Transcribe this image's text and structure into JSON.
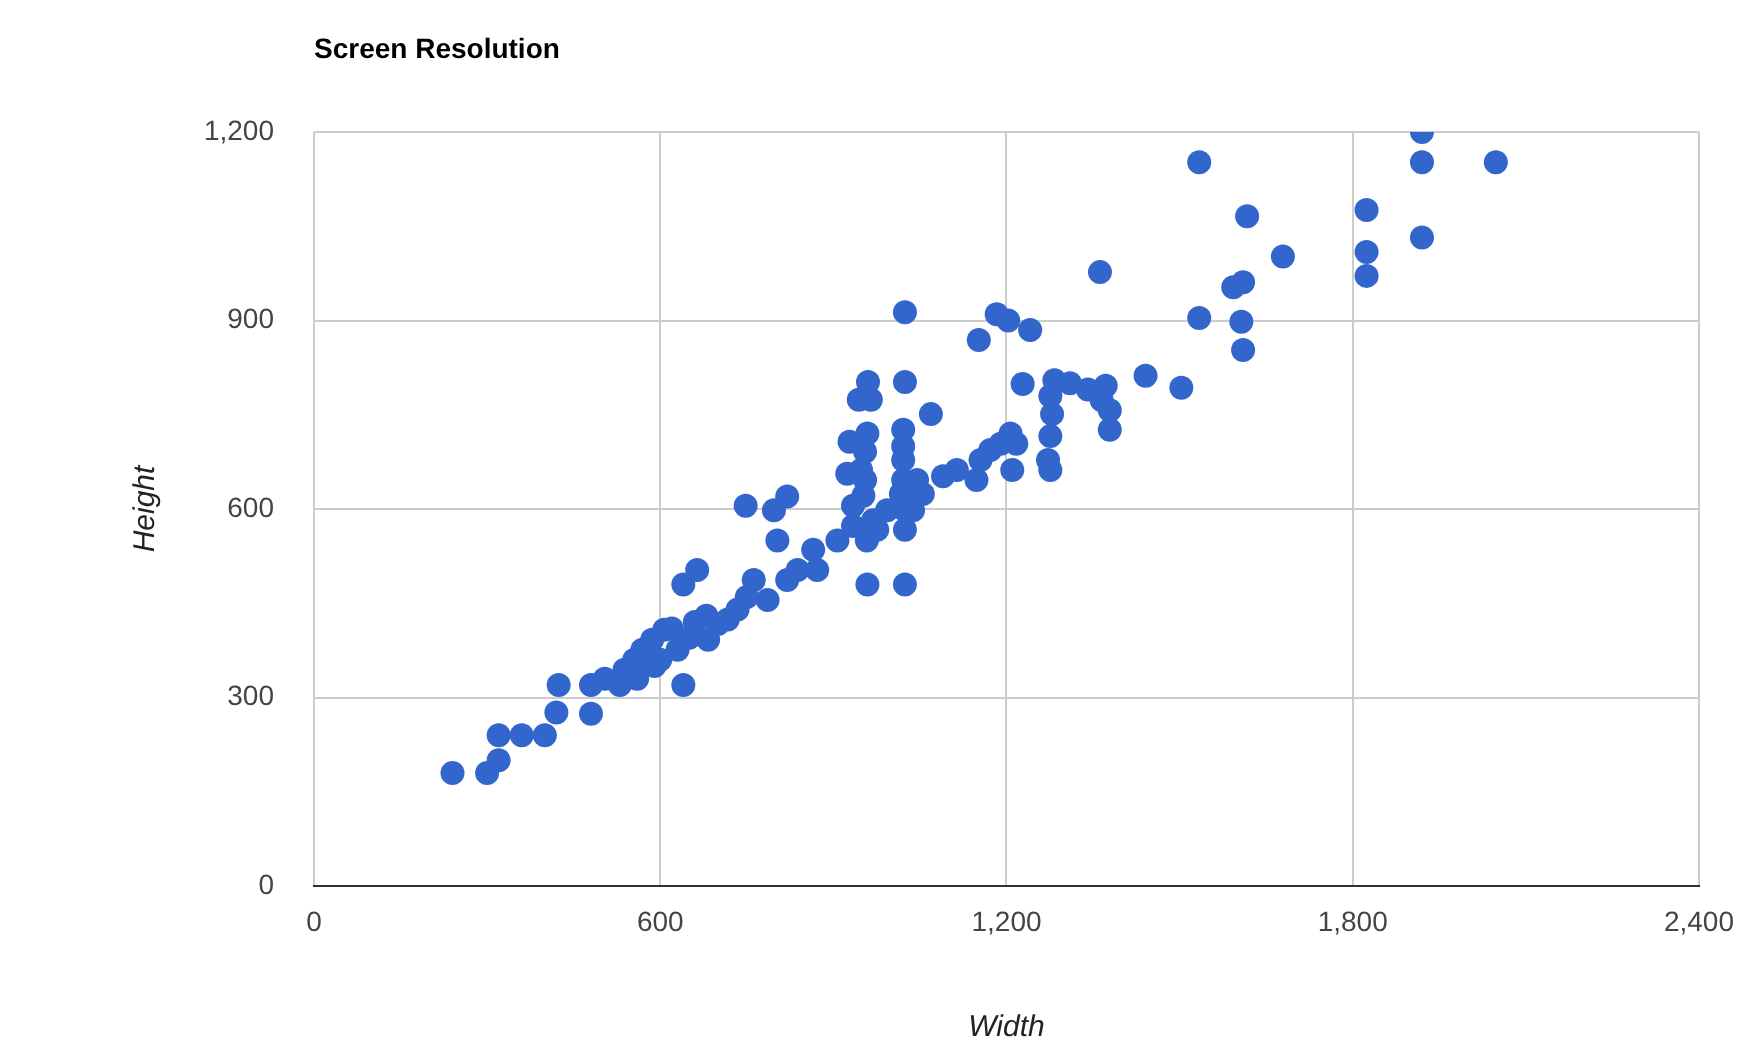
{
  "chart_data": {
    "type": "scatter",
    "title": "Screen Resolution",
    "xlabel": "Width",
    "ylabel": "Height",
    "color": "#3366cc",
    "marker": "circle",
    "grid": true,
    "legend": false,
    "xlim": [
      0,
      2400
    ],
    "xticks": [
      0,
      600,
      {
        "value": 1200,
        "label": "1,200"
      },
      {
        "value": 1800,
        "label": "1,800"
      },
      {
        "value": 2400,
        "label": "2,400"
      }
    ],
    "ylim": [
      0,
      1200
    ],
    "yticks": [
      0,
      300,
      600,
      900,
      {
        "value": 1200,
        "label": "1,200"
      }
    ],
    "x": [
      240,
      300,
      320,
      320,
      360,
      400,
      420,
      424,
      480,
      480,
      504,
      530,
      560,
      600,
      630,
      640,
      640,
      664,
      683,
      700,
      717,
      734,
      748,
      750,
      762,
      786,
      797,
      803,
      820,
      820,
      838,
      865,
      872,
      907,
      934,
      934,
      948,
      952,
      960,
      1024,
      944,
      965,
      1069,
      959,
      1021,
      928,
      955,
      1021,
      1021,
      1021,
      924,
      955,
      1024,
      1017,
      1055,
      1045,
      1090,
      969,
      959,
      1024,
      1024,
      958,
      976,
      993,
      1038,
      1024,
      1183,
      1203,
      1152,
      1241,
      1534,
      1617,
      1679,
      1593,
      1610,
      1534,
      1607,
      1610,
      1503,
      1824,
      1824,
      1824,
      1920,
      1920,
      1920,
      2048,
      1441,
      1372,
      1362,
      1283,
      1310,
      1341,
      1365,
      1379,
      1379,
      1276,
      1279,
      1276,
      1272,
      1276,
      1228,
      1148,
      1155,
      1172,
      1190,
      1207,
      1217,
      1210,
      1114,
      569,
      586,
      607,
      555,
      538,
      620,
      660,
      680,
      590,
      650
    ],
    "values": [
      180,
      180,
      200,
      240,
      240,
      240,
      276,
      320,
      274,
      320,
      330,
      320,
      330,
      360,
      376,
      320,
      480,
      503,
      392,
      417,
      424,
      440,
      605,
      460,
      487,
      455,
      598,
      550,
      620,
      487,
      503,
      535,
      503,
      550,
      573,
      605,
      662,
      621,
      802,
      802,
      774,
      774,
      751,
      720,
      726,
      707,
      691,
      700,
      678,
      646,
      656,
      646,
      598,
      624,
      624,
      646,
      652,
      582,
      480,
      480,
      567,
      550,
      567,
      598,
      598,
      913,
      910,
      900,
      869,
      885,
      1152,
      1066,
      1002,
      953,
      961,
      904,
      898,
      853,
      793,
      1076,
      1009,
      971,
      1200,
      1152,
      1032,
      1152,
      812,
      796,
      977,
      805,
      800,
      790,
      773,
      726,
      757,
      780,
      751,
      716,
      678,
      662,
      799,
      646,
      678,
      694,
      704,
      720,
      704,
      662,
      662,
      376,
      392,
      408,
      360,
      344,
      410,
      420,
      430,
      350,
      395
    ]
  }
}
